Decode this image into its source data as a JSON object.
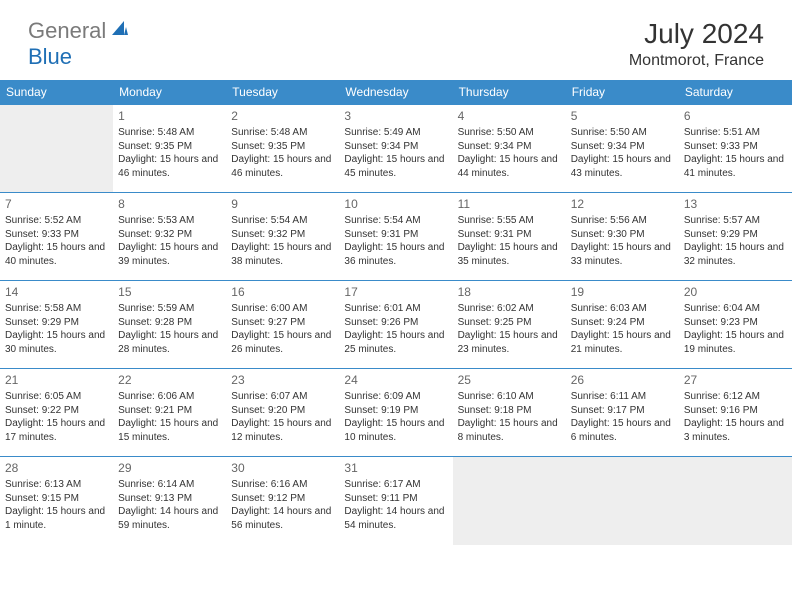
{
  "brand": {
    "text_general": "General",
    "text_blue": "Blue",
    "general_color": "#7a7a7a",
    "blue_color": "#1f6fb5"
  },
  "header": {
    "month_title": "July 2024",
    "location": "Montmorot, France"
  },
  "colors": {
    "header_bg": "#3a8bc9",
    "header_text": "#ffffff",
    "cell_border": "#3a8bc9",
    "empty_bg": "#eeeeee",
    "daynum_color": "#666666",
    "text_color": "#333333"
  },
  "weekdays": [
    "Sunday",
    "Monday",
    "Tuesday",
    "Wednesday",
    "Thursday",
    "Friday",
    "Saturday"
  ],
  "days": [
    {
      "n": 1,
      "sr": "5:48 AM",
      "ss": "9:35 PM",
      "dl": "15 hours and 46 minutes."
    },
    {
      "n": 2,
      "sr": "5:48 AM",
      "ss": "9:35 PM",
      "dl": "15 hours and 46 minutes."
    },
    {
      "n": 3,
      "sr": "5:49 AM",
      "ss": "9:34 PM",
      "dl": "15 hours and 45 minutes."
    },
    {
      "n": 4,
      "sr": "5:50 AM",
      "ss": "9:34 PM",
      "dl": "15 hours and 44 minutes."
    },
    {
      "n": 5,
      "sr": "5:50 AM",
      "ss": "9:34 PM",
      "dl": "15 hours and 43 minutes."
    },
    {
      "n": 6,
      "sr": "5:51 AM",
      "ss": "9:33 PM",
      "dl": "15 hours and 41 minutes."
    },
    {
      "n": 7,
      "sr": "5:52 AM",
      "ss": "9:33 PM",
      "dl": "15 hours and 40 minutes."
    },
    {
      "n": 8,
      "sr": "5:53 AM",
      "ss": "9:32 PM",
      "dl": "15 hours and 39 minutes."
    },
    {
      "n": 9,
      "sr": "5:54 AM",
      "ss": "9:32 PM",
      "dl": "15 hours and 38 minutes."
    },
    {
      "n": 10,
      "sr": "5:54 AM",
      "ss": "9:31 PM",
      "dl": "15 hours and 36 minutes."
    },
    {
      "n": 11,
      "sr": "5:55 AM",
      "ss": "9:31 PM",
      "dl": "15 hours and 35 minutes."
    },
    {
      "n": 12,
      "sr": "5:56 AM",
      "ss": "9:30 PM",
      "dl": "15 hours and 33 minutes."
    },
    {
      "n": 13,
      "sr": "5:57 AM",
      "ss": "9:29 PM",
      "dl": "15 hours and 32 minutes."
    },
    {
      "n": 14,
      "sr": "5:58 AM",
      "ss": "9:29 PM",
      "dl": "15 hours and 30 minutes."
    },
    {
      "n": 15,
      "sr": "5:59 AM",
      "ss": "9:28 PM",
      "dl": "15 hours and 28 minutes."
    },
    {
      "n": 16,
      "sr": "6:00 AM",
      "ss": "9:27 PM",
      "dl": "15 hours and 26 minutes."
    },
    {
      "n": 17,
      "sr": "6:01 AM",
      "ss": "9:26 PM",
      "dl": "15 hours and 25 minutes."
    },
    {
      "n": 18,
      "sr": "6:02 AM",
      "ss": "9:25 PM",
      "dl": "15 hours and 23 minutes."
    },
    {
      "n": 19,
      "sr": "6:03 AM",
      "ss": "9:24 PM",
      "dl": "15 hours and 21 minutes."
    },
    {
      "n": 20,
      "sr": "6:04 AM",
      "ss": "9:23 PM",
      "dl": "15 hours and 19 minutes."
    },
    {
      "n": 21,
      "sr": "6:05 AM",
      "ss": "9:22 PM",
      "dl": "15 hours and 17 minutes."
    },
    {
      "n": 22,
      "sr": "6:06 AM",
      "ss": "9:21 PM",
      "dl": "15 hours and 15 minutes."
    },
    {
      "n": 23,
      "sr": "6:07 AM",
      "ss": "9:20 PM",
      "dl": "15 hours and 12 minutes."
    },
    {
      "n": 24,
      "sr": "6:09 AM",
      "ss": "9:19 PM",
      "dl": "15 hours and 10 minutes."
    },
    {
      "n": 25,
      "sr": "6:10 AM",
      "ss": "9:18 PM",
      "dl": "15 hours and 8 minutes."
    },
    {
      "n": 26,
      "sr": "6:11 AM",
      "ss": "9:17 PM",
      "dl": "15 hours and 6 minutes."
    },
    {
      "n": 27,
      "sr": "6:12 AM",
      "ss": "9:16 PM",
      "dl": "15 hours and 3 minutes."
    },
    {
      "n": 28,
      "sr": "6:13 AM",
      "ss": "9:15 PM",
      "dl": "15 hours and 1 minute."
    },
    {
      "n": 29,
      "sr": "6:14 AM",
      "ss": "9:13 PM",
      "dl": "14 hours and 59 minutes."
    },
    {
      "n": 30,
      "sr": "6:16 AM",
      "ss": "9:12 PM",
      "dl": "14 hours and 56 minutes."
    },
    {
      "n": 31,
      "sr": "6:17 AM",
      "ss": "9:11 PM",
      "dl": "14 hours and 54 minutes."
    }
  ],
  "labels": {
    "sunrise_prefix": "Sunrise: ",
    "sunset_prefix": "Sunset: ",
    "daylight_prefix": "Daylight: "
  },
  "layout": {
    "first_day_column": 1,
    "rows": 5,
    "cols": 7
  },
  "typography": {
    "month_title_fontsize": 28,
    "location_fontsize": 16,
    "weekday_fontsize": 12,
    "daynum_fontsize": 12,
    "cell_fontsize": 10
  }
}
